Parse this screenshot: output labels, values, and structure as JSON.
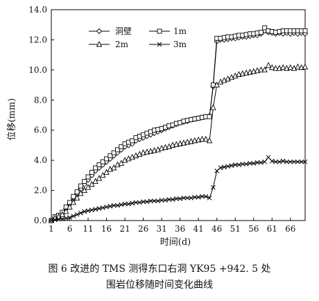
{
  "chart_data": {
    "type": "line",
    "title": "",
    "xlabel": "时间(d)",
    "ylabel": "位移(mm)",
    "xlim": [
      1,
      70
    ],
    "ylim": [
      0,
      14
    ],
    "xticks": [
      "1",
      "6",
      "11",
      "16",
      "21",
      "26",
      "31",
      "36",
      "41",
      "46",
      "51",
      "56",
      "61",
      "66"
    ],
    "xtick_values": [
      1,
      6,
      11,
      16,
      21,
      26,
      31,
      36,
      41,
      46,
      51,
      56,
      61,
      66
    ],
    "yticks": [
      "0.0",
      "2.0",
      "4.0",
      "6.0",
      "8.0",
      "10.0",
      "12.0",
      "14.0"
    ],
    "ytick_values": [
      0,
      2,
      4,
      6,
      8,
      10,
      12,
      14
    ],
    "grid": false,
    "legend_position": "top-center",
    "series": [
      {
        "name": "洞壁",
        "marker": "diamond",
        "x": [
          1,
          2,
          3,
          4,
          5,
          6,
          7,
          8,
          9,
          10,
          11,
          12,
          13,
          14,
          15,
          16,
          17,
          18,
          19,
          20,
          21,
          22,
          23,
          24,
          25,
          26,
          27,
          28,
          29,
          30,
          31,
          32,
          33,
          34,
          35,
          36,
          37,
          38,
          39,
          40,
          41,
          42,
          43,
          44,
          45,
          46,
          47,
          48,
          49,
          50,
          51,
          52,
          53,
          54,
          55,
          56,
          57,
          58,
          59,
          60,
          61,
          62,
          63,
          64,
          65,
          66,
          67,
          68,
          69,
          70
        ],
        "values": [
          0.0,
          0.2,
          0.3,
          0.5,
          0.8,
          1.1,
          1.5,
          1.8,
          2.1,
          2.4,
          2.7,
          3.0,
          3.3,
          3.5,
          3.7,
          3.9,
          4.1,
          4.3,
          4.5,
          4.7,
          4.9,
          5.0,
          5.1,
          5.3,
          5.4,
          5.5,
          5.6,
          5.7,
          5.8,
          5.9,
          6.0,
          6.1,
          6.2,
          6.3,
          6.4,
          6.5,
          6.55,
          6.6,
          6.7,
          6.75,
          6.8,
          6.85,
          6.9,
          6.95,
          8.9,
          11.9,
          12.0,
          12.0,
          12.05,
          12.1,
          12.1,
          12.15,
          12.2,
          12.2,
          12.25,
          12.3,
          12.3,
          12.4,
          12.6,
          12.5,
          12.45,
          12.4,
          12.45,
          12.4,
          12.45,
          12.4,
          12.45,
          12.4,
          12.45,
          12.4
        ]
      },
      {
        "name": "1m",
        "marker": "square",
        "x": [
          1,
          2,
          3,
          4,
          5,
          6,
          7,
          8,
          9,
          10,
          11,
          12,
          13,
          14,
          15,
          16,
          17,
          18,
          19,
          20,
          21,
          22,
          23,
          24,
          25,
          26,
          27,
          28,
          29,
          30,
          31,
          32,
          33,
          34,
          35,
          36,
          37,
          38,
          39,
          40,
          41,
          42,
          43,
          44,
          45,
          46,
          47,
          48,
          49,
          50,
          51,
          52,
          53,
          54,
          55,
          56,
          57,
          58,
          59,
          60,
          61,
          62,
          63,
          64,
          65,
          66,
          67,
          68,
          69,
          70
        ],
        "values": [
          0.0,
          0.25,
          0.35,
          0.55,
          0.9,
          1.2,
          1.6,
          1.9,
          2.3,
          2.6,
          2.9,
          3.2,
          3.5,
          3.7,
          3.9,
          4.1,
          4.3,
          4.5,
          4.7,
          4.9,
          5.1,
          5.2,
          5.3,
          5.5,
          5.6,
          5.7,
          5.8,
          5.9,
          6.0,
          6.05,
          6.1,
          6.2,
          6.3,
          6.35,
          6.45,
          6.5,
          6.6,
          6.65,
          6.7,
          6.75,
          6.8,
          6.85,
          6.9,
          6.9,
          9.0,
          12.1,
          12.1,
          12.15,
          12.2,
          12.2,
          12.25,
          12.3,
          12.3,
          12.35,
          12.4,
          12.4,
          12.45,
          12.5,
          12.8,
          12.6,
          12.55,
          12.5,
          12.55,
          12.6,
          12.6,
          12.6,
          12.6,
          12.6,
          12.6,
          12.6
        ]
      },
      {
        "name": "2m",
        "marker": "triangle",
        "x": [
          1,
          2,
          3,
          4,
          5,
          6,
          7,
          8,
          9,
          10,
          11,
          12,
          13,
          14,
          15,
          16,
          17,
          18,
          19,
          20,
          21,
          22,
          23,
          24,
          25,
          26,
          27,
          28,
          29,
          30,
          31,
          32,
          33,
          34,
          35,
          36,
          37,
          38,
          39,
          40,
          41,
          42,
          43,
          44,
          45,
          46,
          47,
          48,
          49,
          50,
          51,
          52,
          53,
          54,
          55,
          56,
          57,
          58,
          59,
          60,
          61,
          62,
          63,
          64,
          65,
          66,
          67,
          68,
          69,
          70
        ],
        "values": [
          0.0,
          0.15,
          0.25,
          0.4,
          0.6,
          0.9,
          1.2,
          1.5,
          1.8,
          2.0,
          2.2,
          2.4,
          2.6,
          2.8,
          3.0,
          3.2,
          3.4,
          3.5,
          3.7,
          3.8,
          4.0,
          4.1,
          4.2,
          4.3,
          4.4,
          4.5,
          4.55,
          4.6,
          4.65,
          4.7,
          4.8,
          4.85,
          4.9,
          5.0,
          5.05,
          5.1,
          5.15,
          5.2,
          5.25,
          5.3,
          5.35,
          5.4,
          5.4,
          5.3,
          7.5,
          9.0,
          9.2,
          9.3,
          9.4,
          9.5,
          9.6,
          9.7,
          9.75,
          9.8,
          9.85,
          9.9,
          9.95,
          10.0,
          10.0,
          10.3,
          10.15,
          10.1,
          10.1,
          10.15,
          10.1,
          10.15,
          10.1,
          10.2,
          10.15,
          10.2
        ]
      },
      {
        "name": "3m",
        "marker": "cross",
        "x": [
          1,
          2,
          3,
          4,
          5,
          6,
          7,
          8,
          9,
          10,
          11,
          12,
          13,
          14,
          15,
          16,
          17,
          18,
          19,
          20,
          21,
          22,
          23,
          24,
          25,
          26,
          27,
          28,
          29,
          30,
          31,
          32,
          33,
          34,
          35,
          36,
          37,
          38,
          39,
          40,
          41,
          42,
          43,
          44,
          45,
          46,
          47,
          48,
          49,
          50,
          51,
          52,
          53,
          54,
          55,
          56,
          57,
          58,
          59,
          60,
          61,
          62,
          63,
          64,
          65,
          66,
          67,
          68,
          69,
          70
        ],
        "values": [
          0.0,
          0.05,
          0.1,
          0.1,
          0.15,
          0.2,
          0.3,
          0.4,
          0.5,
          0.6,
          0.65,
          0.7,
          0.75,
          0.8,
          0.85,
          0.9,
          0.95,
          1.0,
          1.0,
          1.05,
          1.1,
          1.1,
          1.15,
          1.2,
          1.2,
          1.25,
          1.25,
          1.3,
          1.3,
          1.3,
          1.35,
          1.35,
          1.4,
          1.4,
          1.45,
          1.45,
          1.5,
          1.5,
          1.5,
          1.55,
          1.55,
          1.6,
          1.6,
          1.5,
          2.2,
          3.3,
          3.5,
          3.55,
          3.6,
          3.65,
          3.7,
          3.7,
          3.75,
          3.75,
          3.8,
          3.8,
          3.85,
          3.85,
          3.9,
          4.2,
          3.95,
          3.9,
          3.9,
          3.95,
          3.9,
          3.9,
          3.9,
          3.9,
          3.9,
          3.9
        ]
      }
    ]
  },
  "caption": {
    "line1": "图 6   改进的 TMS 测得东口右洞 YK95 +942. 5 处",
    "line2": "围岩位移随时间变化曲线"
  }
}
